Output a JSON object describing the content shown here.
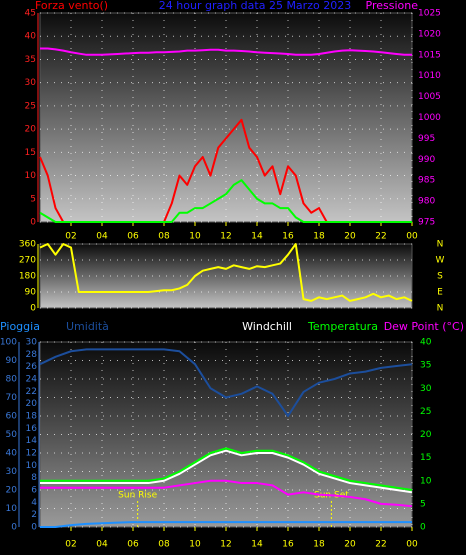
{
  "chart_data": [
    {
      "type": "line",
      "title": "24 hour graph data  25 Marzo 2023",
      "title_color": "#2020ff",
      "x": [
        0,
        0.5,
        1,
        1.5,
        2,
        2.5,
        3,
        3.5,
        4,
        4.5,
        5,
        5.5,
        6,
        6.5,
        7,
        7.5,
        8,
        8.5,
        9,
        9.5,
        10,
        10.5,
        11,
        11.5,
        12,
        12.5,
        13,
        13.5,
        14,
        14.5,
        15,
        15.5,
        16,
        16.5,
        17,
        17.5,
        18,
        18.5,
        19,
        19.5,
        20,
        20.5,
        21,
        21.5,
        22,
        22.5,
        23,
        23.5,
        24
      ],
      "xlim": [
        0,
        24
      ],
      "xticks": [
        {
          "value": 2,
          "label": "02"
        },
        {
          "value": 4,
          "label": "04"
        },
        {
          "value": 6,
          "label": "06"
        },
        {
          "value": 8,
          "label": "08"
        },
        10,
        12,
        14,
        16,
        18,
        20,
        22,
        {
          "value": 24,
          "label": "00"
        }
      ],
      "xtick_color": "#ffff00",
      "ylim": [
        0,
        45
      ],
      "yticks": [
        0,
        5,
        10,
        15,
        20,
        25,
        30,
        35,
        40,
        45
      ],
      "ytick_color": "#ff2020",
      "y2lim": [
        975,
        1025
      ],
      "y2ticks": [
        975,
        980,
        985,
        990,
        995,
        1000,
        1005,
        1010,
        1015,
        1020,
        1025
      ],
      "y2tick_color": "#ff00ff",
      "grid": true,
      "series": [
        {
          "name": "Forza vento()",
          "color": "#ff0000",
          "values": [
            14,
            10,
            3,
            0,
            0,
            0,
            0,
            0,
            0,
            0,
            0,
            0,
            0,
            0,
            0,
            0,
            0,
            4,
            10,
            8,
            12,
            14,
            10,
            16,
            18,
            20,
            22,
            16,
            14,
            10,
            12,
            6,
            12,
            10,
            4,
            2,
            3,
            0,
            0,
            0,
            0,
            0,
            0,
            0,
            0,
            0,
            0,
            0,
            0
          ]
        },
        {
          "color": "#00ff00",
          "values": [
            2,
            1,
            0,
            0,
            0,
            0,
            0,
            0,
            0,
            0,
            0,
            0,
            0,
            0,
            0,
            0,
            0,
            0,
            2,
            2,
            3,
            3,
            4,
            5,
            6,
            8,
            9,
            7,
            5,
            4,
            4,
            3,
            3,
            1,
            0,
            0,
            0,
            0,
            0,
            0,
            0,
            0,
            0,
            0,
            0,
            0,
            0,
            0,
            0
          ]
        },
        {
          "name": "Pressione",
          "color": "#ff00ff",
          "axis": "y2",
          "values": [
            1016.5,
            1016.5,
            1016.3,
            1016,
            1015.6,
            1015.3,
            1015,
            1015,
            1015,
            1015.1,
            1015.2,
            1015.3,
            1015.4,
            1015.5,
            1015.5,
            1015.6,
            1015.6,
            1015.7,
            1015.8,
            1016,
            1016,
            1016.1,
            1016.2,
            1016.2,
            1016,
            1016,
            1015.9,
            1015.8,
            1015.6,
            1015.5,
            1015.4,
            1015.3,
            1015.2,
            1015,
            1015,
            1015,
            1015.2,
            1015.5,
            1015.8,
            1016,
            1016.1,
            1016,
            1015.9,
            1015.8,
            1015.6,
            1015.4,
            1015.2,
            1015,
            1015
          ]
        }
      ]
    },
    {
      "type": "line",
      "x": [
        0,
        0.5,
        1,
        1.5,
        2,
        2.5,
        3,
        3.5,
        4,
        4.5,
        5,
        5.5,
        6,
        6.5,
        7,
        7.5,
        8,
        8.5,
        9,
        9.5,
        10,
        10.5,
        11,
        11.5,
        12,
        12.5,
        13,
        13.5,
        14,
        14.5,
        15,
        15.5,
        16,
        16.5,
        17,
        17.5,
        18,
        18.5,
        19,
        19.5,
        20,
        20.5,
        21,
        21.5,
        22,
        22.5,
        23,
        23.5,
        24
      ],
      "xlim": [
        0,
        24
      ],
      "ylim": [
        0,
        360
      ],
      "yticks": [
        0,
        90,
        180,
        270,
        360
      ],
      "ytick_color": "#ffff00",
      "y2lim": [
        0,
        360
      ],
      "y2ticks": [
        {
          "value": 360,
          "label": "N"
        },
        {
          "value": 270,
          "label": "W"
        },
        {
          "value": 180,
          "label": "S"
        },
        {
          "value": 90,
          "label": "E"
        },
        {
          "value": 0,
          "label": "N"
        }
      ],
      "y2tick_color": "#ffff00",
      "grid": true,
      "series": [
        {
          "color": "#ffff00",
          "values": [
            340,
            360,
            300,
            360,
            340,
            90,
            90,
            90,
            90,
            90,
            90,
            90,
            90,
            90,
            90,
            95,
            100,
            100,
            110,
            130,
            180,
            210,
            220,
            230,
            220,
            240,
            230,
            220,
            235,
            230,
            240,
            250,
            300,
            360,
            50,
            40,
            60,
            50,
            60,
            70,
            40,
            50,
            60,
            80,
            60,
            70,
            50,
            60,
            40
          ]
        }
      ]
    },
    {
      "type": "line",
      "x": [
        0,
        1,
        2,
        3,
        4,
        5,
        6,
        7,
        8,
        9,
        10,
        11,
        12,
        13,
        14,
        15,
        16,
        17,
        18,
        19,
        20,
        21,
        22,
        23,
        24
      ],
      "xlim": [
        0,
        24
      ],
      "xticks": [
        {
          "value": 2,
          "label": "02"
        },
        {
          "value": 4,
          "label": "04"
        },
        {
          "value": 6,
          "label": "06"
        },
        {
          "value": 8,
          "label": "08"
        },
        10,
        12,
        14,
        16,
        18,
        20,
        22,
        {
          "value": 24,
          "label": "00"
        }
      ],
      "xtick_color": "#ffff00",
      "ylim": [
        0,
        100
      ],
      "yticks": [
        0,
        10,
        20,
        30,
        40,
        50,
        60,
        70,
        80,
        90,
        100
      ],
      "ytick_color": "#3a78d8",
      "y3lim": [
        0,
        30
      ],
      "y3ticks": [
        0,
        2,
        4,
        6,
        8,
        10,
        12,
        14,
        16,
        18,
        20,
        22,
        24,
        26,
        28,
        30
      ],
      "y3tick_color": "#3a78d8",
      "y2lim": [
        0,
        40
      ],
      "y2ticks": [
        0,
        5,
        10,
        15,
        20,
        25,
        30,
        35,
        40
      ],
      "y2tick_color": "#00ff00",
      "grid": true,
      "annotations": [
        {
          "text": "Sun Rise",
          "x": 6.3
        },
        {
          "text": "Sun Set",
          "x": 18.8
        }
      ],
      "annotation_color": "#ffff00",
      "series": [
        {
          "name": "Pioggia",
          "color": "#1e90ff",
          "axis": "y3",
          "values": [
            0,
            0,
            0.3,
            0.5,
            0.6,
            0.7,
            0.8,
            0.8,
            0.8,
            0.8,
            0.8,
            0.8,
            0.8,
            0.8,
            0.8,
            0.8,
            0.8,
            0.8,
            0.8,
            0.8,
            0.8,
            0.8,
            0.8,
            0.8,
            0.8
          ]
        },
        {
          "name": "Umidità",
          "color": "#1c4e9c",
          "values": [
            88,
            92,
            95,
            96,
            96,
            96,
            96,
            96,
            96,
            95,
            88,
            75,
            70,
            72,
            76,
            72,
            60,
            73,
            78,
            80,
            83,
            84,
            86,
            87,
            88
          ]
        },
        {
          "name": "Windchill",
          "color": "#ffffff",
          "axis": "y2",
          "values": [
            9.5,
            9.5,
            9.5,
            9.5,
            9.5,
            9.5,
            9.5,
            9.5,
            10,
            11.5,
            13.5,
            15.5,
            16.5,
            15.5,
            16,
            16,
            15,
            13.5,
            11.5,
            10.5,
            9.5,
            9,
            8.5,
            8,
            7.5
          ]
        },
        {
          "name": "Temperatura",
          "color": "#00ff00",
          "axis": "y2",
          "values": [
            10,
            10,
            10,
            10,
            10,
            10,
            10,
            10,
            10.5,
            12,
            14,
            16,
            17,
            16,
            16.5,
            16.5,
            15.5,
            14,
            12,
            11,
            10,
            9.5,
            9,
            8.5,
            8
          ]
        },
        {
          "name": "Dew Point (°C)",
          "color": "#ff00ff",
          "axis": "y2",
          "values": [
            8.5,
            8.5,
            8.5,
            8.5,
            8.5,
            8.5,
            8.5,
            8.5,
            8.5,
            9,
            9.5,
            10,
            10,
            9.5,
            9.5,
            9,
            7,
            7.5,
            7,
            6.8,
            6.5,
            6,
            5,
            4.8,
            4.5
          ]
        }
      ]
    }
  ]
}
